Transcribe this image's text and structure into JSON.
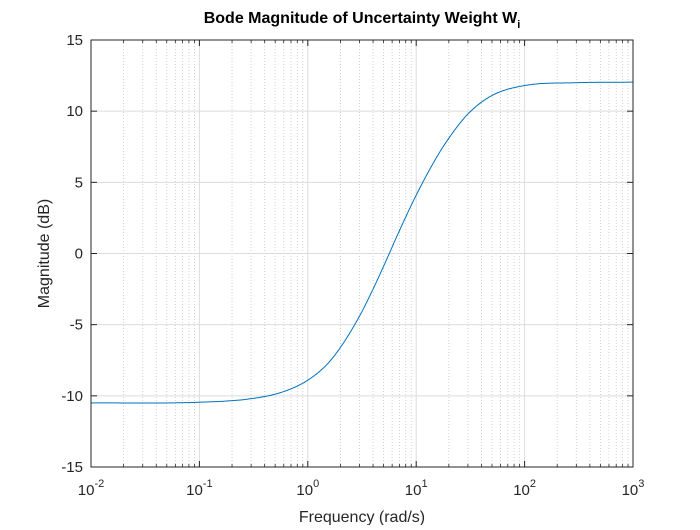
{
  "chart_data": {
    "type": "line",
    "title": "Bode Magnitude of Uncertainty Weight W",
    "title_subscript": "i",
    "xlabel": "Frequency (rad/s)",
    "ylabel": "Magnitude (dB)",
    "x_scale": "log",
    "xlim": [
      0.01,
      1000
    ],
    "ylim": [
      -15,
      15
    ],
    "x_ticks": [
      {
        "base": "10",
        "exp": "-2",
        "value": 0.01
      },
      {
        "base": "10",
        "exp": "-1",
        "value": 0.1
      },
      {
        "base": "10",
        "exp": "0",
        "value": 1
      },
      {
        "base": "10",
        "exp": "1",
        "value": 10
      },
      {
        "base": "10",
        "exp": "2",
        "value": 100
      },
      {
        "base": "10",
        "exp": "3",
        "value": 1000
      }
    ],
    "y_ticks": [
      {
        "label": "15",
        "value": 15
      },
      {
        "label": "10",
        "value": 10
      },
      {
        "label": "5",
        "value": 5
      },
      {
        "label": "0",
        "value": 0
      },
      {
        "label": "-5",
        "value": -5
      },
      {
        "label": "-10",
        "value": -10
      },
      {
        "label": "-15",
        "value": -15
      }
    ],
    "grid": true,
    "minor_grid": true,
    "series": [
      {
        "color": "#0072bd",
        "x": [
          0.01,
          0.1,
          0.3,
          0.6,
          1.0,
          1.5,
          2.0,
          3.0,
          4.0,
          5.0,
          7.0,
          10.0,
          15.0,
          20.0,
          30.0,
          50.0,
          100.0,
          300.0,
          1000.0
        ],
        "y": [
          -10.5,
          -10.45,
          -10.2,
          -9.7,
          -8.9,
          -7.8,
          -6.6,
          -4.4,
          -2.5,
          -0.9,
          1.6,
          4.1,
          6.6,
          8.1,
          9.8,
          11.1,
          11.8,
          12.0,
          12.04
        ]
      }
    ]
  }
}
